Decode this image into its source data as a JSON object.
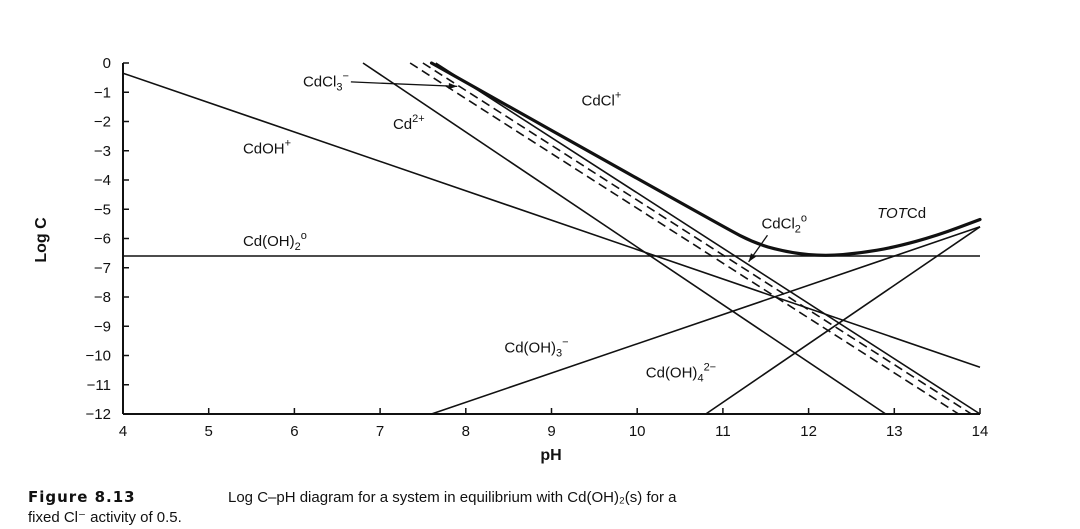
{
  "chart_data": {
    "type": "line",
    "xlabel": "pH",
    "ylabel": "Log C",
    "xlim": [
      4,
      14
    ],
    "ylim": [
      -12,
      0
    ],
    "x_ticks": [
      4,
      5,
      6,
      7,
      8,
      9,
      10,
      11,
      12,
      13,
      14
    ],
    "y_ticks": [
      0,
      -1,
      -2,
      -3,
      -4,
      -5,
      -6,
      -7,
      -8,
      -9,
      -10,
      -11,
      -12
    ],
    "x_tick_labels": [
      "4",
      "5",
      "6",
      "7",
      "8",
      "9",
      "10",
      "11",
      "12",
      "13",
      "14"
    ],
    "y_tick_labels": [
      "0",
      "−1",
      "−2",
      "−3",
      "−4",
      "−5",
      "−6",
      "−7",
      "−8",
      "−9",
      "−10",
      "−11",
      "−12"
    ],
    "grid": false,
    "legend": "none",
    "series": [
      {
        "name": "Cd2+",
        "style": "solid",
        "x": [
          6.8,
          12.9
        ],
        "y": [
          0,
          -12
        ]
      },
      {
        "name": "CdOH+",
        "style": "solid",
        "x": [
          4,
          14
        ],
        "y": [
          -0.35,
          -10.4
        ]
      },
      {
        "name": "Cd(OH)2°",
        "style": "solid",
        "x": [
          4,
          14
        ],
        "y": [
          -6.6,
          -6.6
        ]
      },
      {
        "name": "Cd(OH)3−",
        "style": "solid",
        "x": [
          7.6,
          14
        ],
        "y": [
          -12,
          -5.6
        ]
      },
      {
        "name": "Cd(OH)42−",
        "style": "solid",
        "x": [
          10.8,
          14
        ],
        "y": [
          -12,
          -5.6
        ]
      },
      {
        "name": "CdCl3−",
        "style": "dashed",
        "x": [
          7.35,
          13.75
        ],
        "y": [
          0,
          -12
        ]
      },
      {
        "name": "CdCl2°",
        "style": "dashed",
        "x": [
          7.5,
          13.9
        ],
        "y": [
          0,
          -12
        ]
      },
      {
        "name": "CdCl+",
        "style": "solid",
        "x": [
          7.65,
          14.0
        ],
        "y": [
          0,
          -12
        ]
      },
      {
        "name": "TOTCd",
        "style": "bold",
        "x": [
          7.6,
          11.0,
          11.4,
          11.8,
          12.2,
          12.6,
          13.0,
          13.5,
          14.0
        ],
        "y": [
          0,
          -5.6,
          -6.2,
          -6.5,
          -6.6,
          -6.5,
          -6.3,
          -5.9,
          -5.35
        ]
      }
    ],
    "annotations": [
      {
        "id": "cdcl3",
        "parts": [
          {
            "t": "CdCl"
          },
          {
            "t": "3",
            "sub": true
          },
          {
            "t": "−",
            "sup": true
          }
        ],
        "x": 6.1,
        "y": -0.8,
        "arrow_to": [
          7.9,
          -0.8
        ]
      },
      {
        "id": "cd2",
        "parts": [
          {
            "t": "Cd"
          },
          {
            "t": "2+",
            "sup": true
          }
        ],
        "x": 7.15,
        "y": -2.25
      },
      {
        "id": "cdcl",
        "parts": [
          {
            "t": "CdCl"
          },
          {
            "t": "+",
            "sup": true
          }
        ],
        "x": 9.35,
        "y": -1.45
      },
      {
        "id": "cdoh",
        "parts": [
          {
            "t": "CdOH"
          },
          {
            "t": "+",
            "sup": true
          }
        ],
        "x": 5.4,
        "y": -3.1
      },
      {
        "id": "cdcl2",
        "parts": [
          {
            "t": "CdCl"
          },
          {
            "t": "2",
            "sub": true
          },
          {
            "t": "o",
            "sup": true
          }
        ],
        "x": 11.45,
        "y": -5.65,
        "arrow_to": [
          11.3,
          -6.8
        ]
      },
      {
        "id": "totcd",
        "parts": [
          {
            "t": "TOT",
            "italic": true
          },
          {
            "t": "Cd"
          }
        ],
        "x": 12.8,
        "y": -5.3
      },
      {
        "id": "cdoh2",
        "parts": [
          {
            "t": "Cd(OH)"
          },
          {
            "t": "2",
            "sub": true
          },
          {
            "t": "o",
            "sup": true
          }
        ],
        "x": 5.4,
        "y": -6.25
      },
      {
        "id": "cdoh3",
        "parts": [
          {
            "t": "Cd(OH)"
          },
          {
            "t": "3",
            "sub": true
          },
          {
            "t": "−",
            "sup": true
          }
        ],
        "x": 8.45,
        "y": -9.9
      },
      {
        "id": "cdoh4",
        "parts": [
          {
            "t": "Cd(OH)"
          },
          {
            "t": "4",
            "sub": true
          },
          {
            "t": "2−",
            "sup": true
          }
        ],
        "x": 10.1,
        "y": -10.75
      }
    ]
  },
  "caption": {
    "figure_number": "Figure 8.13",
    "text_line1": "Log C–pH diagram for a system in equilibrium with Cd(OH)₂(s) for a",
    "text_line2": "fixed Cl⁻ activity of 0.5."
  }
}
